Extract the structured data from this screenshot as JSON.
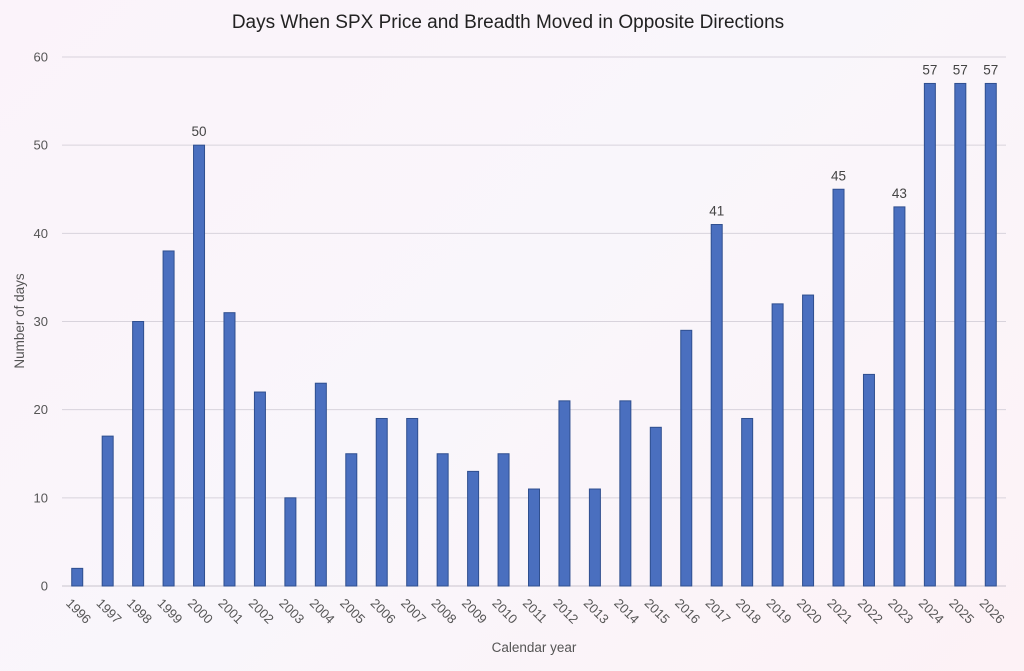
{
  "chart_data": {
    "type": "bar",
    "title": "Days When SPX Price and Breadth Moved in Opposite Directions",
    "xlabel": "Calendar year",
    "ylabel": "Number of days",
    "ylim": [
      0,
      60
    ],
    "yticks": [
      0,
      10,
      20,
      30,
      40,
      50,
      60
    ],
    "grid": true,
    "legend": "none",
    "bar_color": "#4a6fbf",
    "categories": [
      "1996",
      "1997",
      "1998",
      "1999",
      "2000",
      "2001",
      "2002",
      "2003",
      "2004",
      "2005",
      "2006",
      "2007",
      "2008",
      "2009",
      "2010",
      "2011",
      "2012",
      "2013",
      "2014",
      "2015",
      "2016",
      "2017",
      "2018",
      "2019",
      "2020",
      "2021",
      "2022",
      "2023",
      "2024",
      "2025",
      "2026"
    ],
    "values": [
      2,
      17,
      30,
      38,
      50,
      31,
      22,
      10,
      23,
      15,
      19,
      19,
      15,
      13,
      15,
      11,
      21,
      11,
      21,
      18,
      29,
      41,
      19,
      32,
      33,
      45,
      24,
      43,
      57,
      57,
      57
    ],
    "data_labels": [
      {
        "category": "2000",
        "text": "50"
      },
      {
        "category": "2017",
        "text": "41"
      },
      {
        "category": "2021",
        "text": "45"
      },
      {
        "category": "2023",
        "text": "43"
      },
      {
        "category": "2024",
        "text": "57"
      },
      {
        "category": "2025",
        "text": "57"
      },
      {
        "category": "2026",
        "text": "57"
      }
    ]
  }
}
